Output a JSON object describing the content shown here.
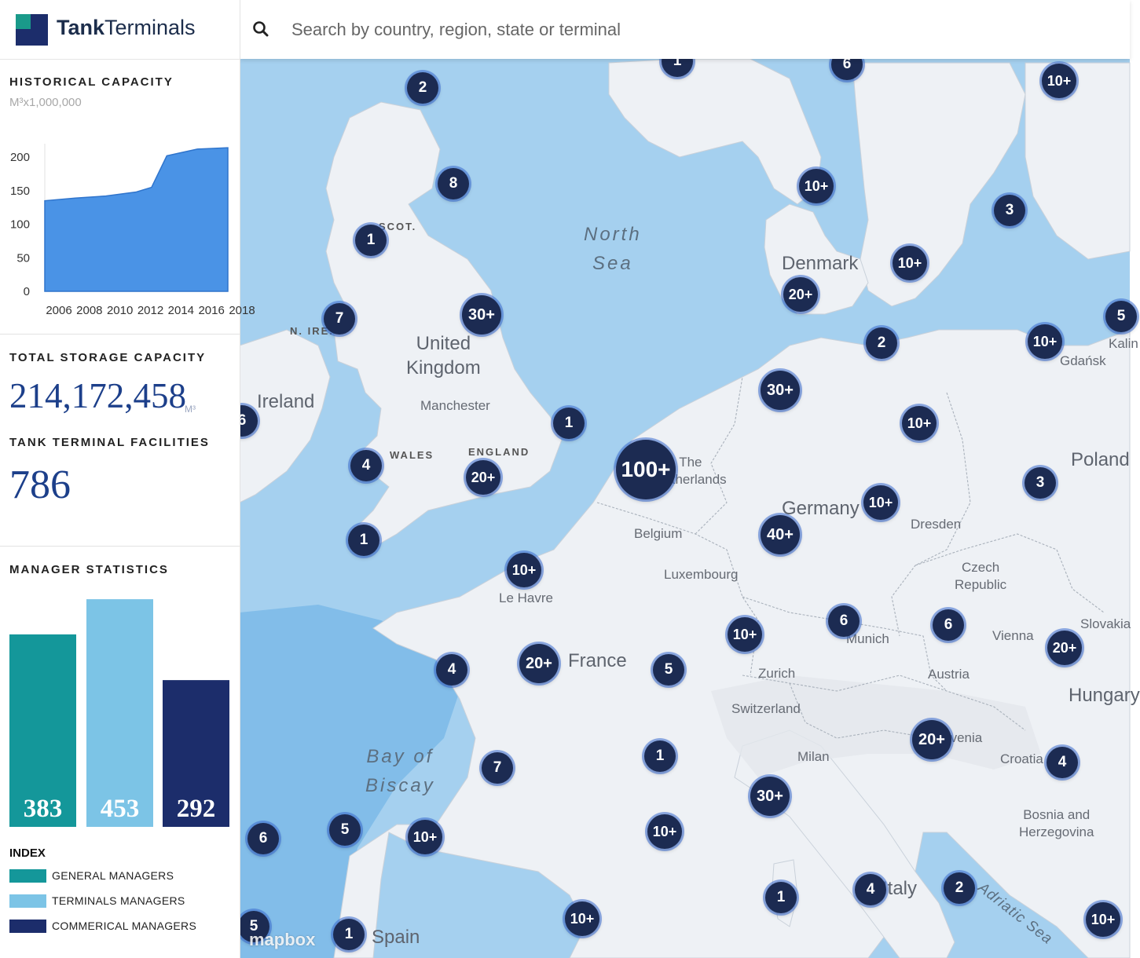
{
  "brand": {
    "name_bold": "Tank",
    "name_light": "Terminals"
  },
  "search": {
    "placeholder": "Search by country, region, state or terminal",
    "value": ""
  },
  "historical": {
    "title": "HISTORICAL CAPACITY",
    "unit": "M³x1,000,000",
    "chart_data": {
      "type": "area",
      "title": "HISTORICAL CAPACITY",
      "x": [
        2006,
        2008,
        2010,
        2012,
        2013,
        2014,
        2015,
        2016,
        2018
      ],
      "series": [
        {
          "values": [
            135,
            139,
            142,
            148,
            155,
            202,
            207,
            212,
            214
          ]
        }
      ],
      "x_ticks": [
        "2006",
        "2008",
        "2010",
        "2012",
        "2014",
        "2016",
        "2018"
      ],
      "y_ticks": [
        "200",
        "150",
        "100",
        "50",
        "0"
      ],
      "ylim": [
        0,
        220
      ],
      "xlim": [
        2006,
        2018
      ],
      "color": "#4a93e6"
    }
  },
  "storage": {
    "title": "TOTAL STORAGE CAPACITY",
    "value": "214,172,458",
    "unit": "M³"
  },
  "facilities": {
    "title": "TANK TERMINAL FACILITIES",
    "value": "786"
  },
  "managers": {
    "title": "MANAGER STATISTICS",
    "chart_data": {
      "type": "bar",
      "categories": [
        "GENERAL MANAGERS",
        "TERMINALS MANAGERS",
        "COMMERICAL MANAGERS"
      ],
      "values": [
        383,
        453,
        292
      ],
      "colors": [
        "#14979a",
        "#7cc4e6",
        "#1c2d6b"
      ],
      "ylim": [
        0,
        500
      ]
    },
    "index_title": "INDEX"
  },
  "map": {
    "attribution": "mapbox",
    "labels": [
      {
        "text": "North\nSea",
        "kind": "sea"
      },
      {
        "text": "Bay of\nBiscay",
        "kind": "sea"
      },
      {
        "text": "United\nKingdom",
        "kind": "country"
      },
      {
        "text": "Ireland",
        "kind": "country"
      },
      {
        "text": "Denmark",
        "kind": "country"
      },
      {
        "text": "Germany",
        "kind": "country"
      },
      {
        "text": "Poland",
        "kind": "country"
      },
      {
        "text": "France",
        "kind": "country"
      },
      {
        "text": "Spain",
        "kind": "country"
      },
      {
        "text": "Italy",
        "kind": "country"
      },
      {
        "text": "Hungary",
        "kind": "country"
      },
      {
        "text": "The\nNetherlands",
        "kind": "city"
      },
      {
        "text": "Belgium",
        "kind": "city"
      },
      {
        "text": "Luxembourg",
        "kind": "city"
      },
      {
        "text": "Czech\nRepublic",
        "kind": "city"
      },
      {
        "text": "Austria",
        "kind": "city"
      },
      {
        "text": "Switzerland",
        "kind": "city"
      },
      {
        "text": "Slovenia",
        "kind": "city"
      },
      {
        "text": "Croatia",
        "kind": "city"
      },
      {
        "text": "Slovakia",
        "kind": "city"
      },
      {
        "text": "Bosnia and\nHerzegovina",
        "kind": "city"
      },
      {
        "text": "Manchester",
        "kind": "city"
      },
      {
        "text": "Le Havre",
        "kind": "city"
      },
      {
        "text": "Dresden",
        "kind": "city"
      },
      {
        "text": "Munich",
        "kind": "city"
      },
      {
        "text": "Zurich",
        "kind": "city"
      },
      {
        "text": "Milan",
        "kind": "city"
      },
      {
        "text": "Vienna",
        "kind": "city"
      },
      {
        "text": "Gdańsk",
        "kind": "city"
      },
      {
        "text": "Kalin",
        "kind": "city"
      },
      {
        "text": "SCOT.",
        "kind": "region"
      },
      {
        "text": "N. IRE.",
        "kind": "region"
      },
      {
        "text": "WALES",
        "kind": "region"
      },
      {
        "text": "ENGLAND",
        "kind": "region"
      },
      {
        "text": "Adriatic Sea",
        "kind": "sea"
      }
    ],
    "markers": [
      {
        "label": "1"
      },
      {
        "label": "6"
      },
      {
        "label": "10+"
      },
      {
        "label": "2"
      },
      {
        "label": "8"
      },
      {
        "label": "10+"
      },
      {
        "label": "3"
      },
      {
        "label": "1"
      },
      {
        "label": "10+"
      },
      {
        "label": "7"
      },
      {
        "label": "30+"
      },
      {
        "label": "20+"
      },
      {
        "label": "2"
      },
      {
        "label": "10+"
      },
      {
        "label": "5"
      },
      {
        "label": "30+"
      },
      {
        "label": "6"
      },
      {
        "label": "1"
      },
      {
        "label": "10+"
      },
      {
        "label": "4"
      },
      {
        "label": "20+"
      },
      {
        "label": "100+"
      },
      {
        "label": "3"
      },
      {
        "label": "10+"
      },
      {
        "label": "1"
      },
      {
        "label": "40+"
      },
      {
        "label": "10+"
      },
      {
        "label": "6"
      },
      {
        "label": "6"
      },
      {
        "label": "10+"
      },
      {
        "label": "4"
      },
      {
        "label": "20+"
      },
      {
        "label": "5"
      },
      {
        "label": "20+"
      },
      {
        "label": "20+"
      },
      {
        "label": "1"
      },
      {
        "label": "4"
      },
      {
        "label": "7"
      },
      {
        "label": "30+"
      },
      {
        "label": "6"
      },
      {
        "label": "5"
      },
      {
        "label": "10+"
      },
      {
        "label": "10+"
      },
      {
        "label": "1"
      },
      {
        "label": "4"
      },
      {
        "label": "2"
      },
      {
        "label": "10+"
      },
      {
        "label": "10+"
      },
      {
        "label": "1"
      },
      {
        "label": "5"
      }
    ]
  }
}
